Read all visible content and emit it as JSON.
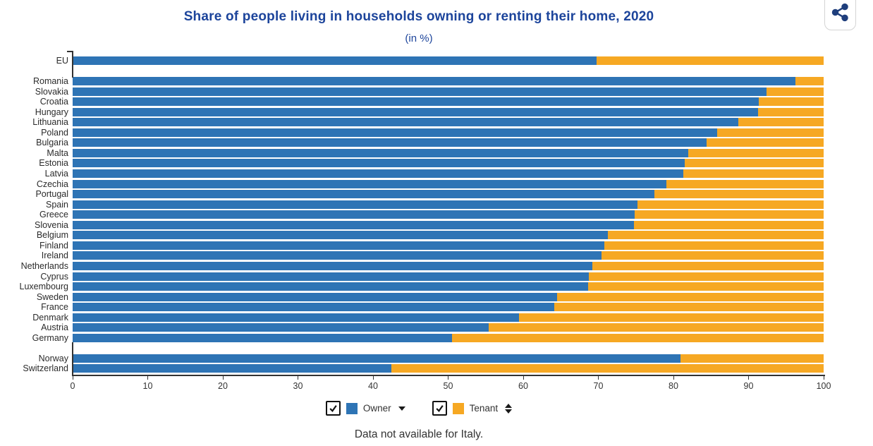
{
  "header": {
    "title": "Share of people living in households owning or renting their home, 2020",
    "subtitle": "(in %)"
  },
  "toolbar": {
    "share_icon": "share-nodes-icon"
  },
  "chart_data": {
    "type": "bar",
    "orientation": "horizontal",
    "stacked": true,
    "stack_total": 100,
    "unit": "%",
    "title": "Share of people living in households owning or renting their home, 2020",
    "subtitle": "(in %)",
    "xlabel": "",
    "ylabel": "",
    "xlim": [
      0,
      100
    ],
    "x_ticks": [
      0,
      10,
      20,
      30,
      40,
      50,
      60,
      70,
      80,
      90,
      100
    ],
    "grid": false,
    "series_names": [
      "Owner",
      "Tenant"
    ],
    "colors": {
      "owner": "#2e74b5",
      "tenant": "#f6a823"
    },
    "groups": [
      {
        "name": "eu-aggregate",
        "items": [
          {
            "country": "EU",
            "owner": 69.8,
            "tenant": 30.2
          }
        ]
      },
      {
        "name": "eu-countries",
        "items": [
          {
            "country": "Romania",
            "owner": 96.2,
            "tenant": 3.8
          },
          {
            "country": "Slovakia",
            "owner": 92.4,
            "tenant": 7.6
          },
          {
            "country": "Croatia",
            "owner": 91.4,
            "tenant": 8.6
          },
          {
            "country": "Hungary",
            "owner": 91.3,
            "tenant": 8.7
          },
          {
            "country": "Lithuania",
            "owner": 88.6,
            "tenant": 11.4
          },
          {
            "country": "Poland",
            "owner": 85.8,
            "tenant": 14.2
          },
          {
            "country": "Bulgaria",
            "owner": 84.4,
            "tenant": 15.6
          },
          {
            "country": "Malta",
            "owner": 82.0,
            "tenant": 18.0
          },
          {
            "country": "Estonia",
            "owner": 81.5,
            "tenant": 18.5
          },
          {
            "country": "Latvia",
            "owner": 81.3,
            "tenant": 18.7
          },
          {
            "country": "Czechia",
            "owner": 79.1,
            "tenant": 20.9
          },
          {
            "country": "Portugal",
            "owner": 77.5,
            "tenant": 22.5
          },
          {
            "country": "Spain",
            "owner": 75.2,
            "tenant": 24.8
          },
          {
            "country": "Greece",
            "owner": 74.8,
            "tenant": 25.2
          },
          {
            "country": "Slovenia",
            "owner": 74.7,
            "tenant": 25.3
          },
          {
            "country": "Belgium",
            "owner": 71.3,
            "tenant": 28.7
          },
          {
            "country": "Finland",
            "owner": 70.8,
            "tenant": 29.2
          },
          {
            "country": "Ireland",
            "owner": 70.4,
            "tenant": 29.6
          },
          {
            "country": "Netherlands",
            "owner": 69.2,
            "tenant": 30.8
          },
          {
            "country": "Cyprus",
            "owner": 68.7,
            "tenant": 31.3
          },
          {
            "country": "Luxembourg",
            "owner": 68.6,
            "tenant": 31.4
          },
          {
            "country": "Sweden",
            "owner": 64.5,
            "tenant": 35.5
          },
          {
            "country": "France",
            "owner": 64.1,
            "tenant": 35.9
          },
          {
            "country": "Denmark",
            "owner": 59.4,
            "tenant": 40.6
          },
          {
            "country": "Austria",
            "owner": 55.4,
            "tenant": 44.6
          },
          {
            "country": "Germany",
            "owner": 50.5,
            "tenant": 49.5
          }
        ]
      },
      {
        "name": "efta-countries",
        "items": [
          {
            "country": "Norway",
            "owner": 80.9,
            "tenant": 19.1
          },
          {
            "country": "Switzerland",
            "owner": 42.4,
            "tenant": 57.6
          }
        ]
      }
    ]
  },
  "legend": {
    "items": [
      {
        "label": "Owner",
        "color": "#2e74b5",
        "checked": true,
        "sort_icon": "sort-down-icon"
      },
      {
        "label": "Tenant",
        "color": "#f6a823",
        "checked": true,
        "sort_icon": "sort-up-down-icon"
      }
    ]
  },
  "footnote": "Data not available for Italy."
}
